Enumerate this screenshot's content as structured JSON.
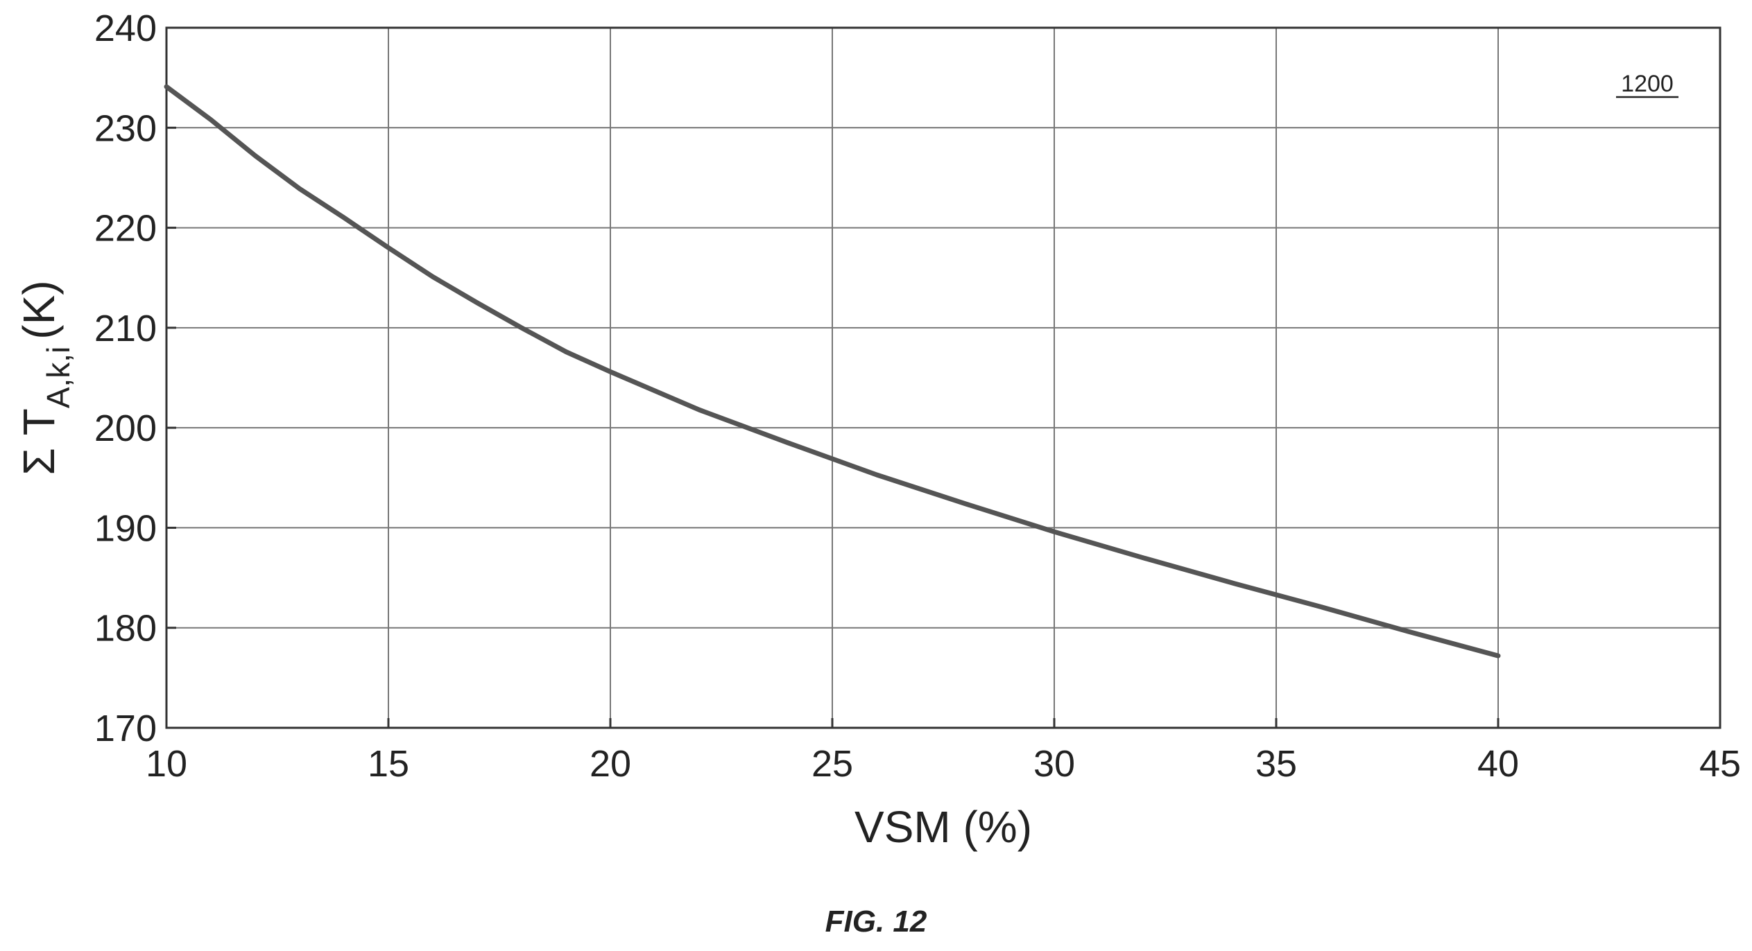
{
  "chart_data": {
    "type": "line",
    "xlabel": "VSM (%)",
    "ylabel_prefix": "Σ T",
    "ylabel_subscript": "A,k,i",
    "ylabel_unit": "(K)",
    "xlim": [
      10,
      45
    ],
    "ylim": [
      170,
      240
    ],
    "xticks": [
      10,
      15,
      20,
      25,
      30,
      35,
      40,
      45
    ],
    "yticks": [
      170,
      180,
      190,
      200,
      210,
      220,
      230,
      240
    ],
    "grid": true,
    "line_color": "#555555",
    "series": [
      {
        "x": [
          10,
          11,
          12,
          13,
          14,
          15,
          16,
          17,
          18,
          19,
          20,
          22,
          24,
          26,
          28,
          30,
          32,
          34,
          36,
          38,
          40
        ],
        "y": [
          234.1,
          230.8,
          227.2,
          223.9,
          221.0,
          218.0,
          215.1,
          212.5,
          210.0,
          207.6,
          205.6,
          201.8,
          198.5,
          195.3,
          192.4,
          189.6,
          187.0,
          184.5,
          182.1,
          179.6,
          177.2
        ]
      }
    ]
  },
  "reference_number": "1200",
  "figure_caption": "FIG. 12"
}
